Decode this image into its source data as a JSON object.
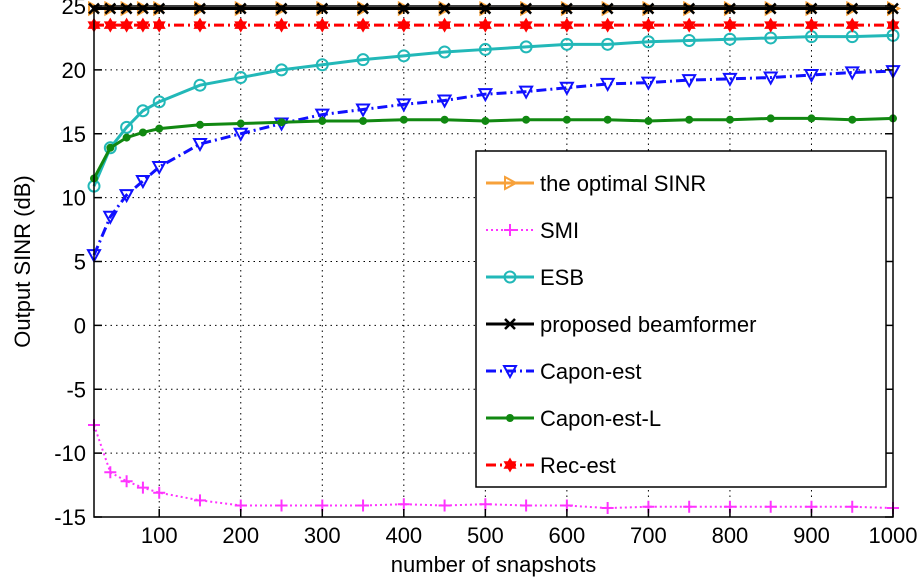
{
  "chart_data": {
    "type": "line",
    "xlabel": "number of snapshots",
    "ylabel": "Output SINR (dB)",
    "xlim": [
      20,
      1000
    ],
    "ylim": [
      -15,
      25
    ],
    "xticks": [
      100,
      200,
      300,
      400,
      500,
      600,
      700,
      800,
      900,
      1000
    ],
    "yticks": [
      -15,
      -10,
      -5,
      0,
      5,
      10,
      15,
      20,
      25
    ],
    "grid": true,
    "legend_position": "center-right",
    "series": [
      {
        "name": "the optimal SINR",
        "color": "#f7a13a",
        "line_style": "solid",
        "marker": "triangle-right",
        "x": [
          20,
          40,
          60,
          80,
          100,
          150,
          200,
          250,
          300,
          350,
          400,
          450,
          500,
          550,
          600,
          650,
          700,
          750,
          800,
          850,
          900,
          950,
          1000
        ],
        "y": [
          24.8,
          24.8,
          24.8,
          24.8,
          24.8,
          24.8,
          24.8,
          24.8,
          24.8,
          24.8,
          24.8,
          24.8,
          24.8,
          24.8,
          24.8,
          24.8,
          24.8,
          24.8,
          24.8,
          24.8,
          24.8,
          24.8,
          24.8
        ]
      },
      {
        "name": "SMI",
        "color": "#ff33ff",
        "line_style": "dotted",
        "marker": "plus",
        "x": [
          20,
          40,
          60,
          80,
          100,
          150,
          200,
          250,
          300,
          350,
          400,
          450,
          500,
          550,
          600,
          650,
          700,
          750,
          800,
          850,
          900,
          950,
          1000
        ],
        "y": [
          -7.8,
          -11.5,
          -12.2,
          -12.7,
          -13.1,
          -13.7,
          -14.1,
          -14.1,
          -14.1,
          -14.1,
          -14.0,
          -14.1,
          -14.0,
          -14.1,
          -14.1,
          -14.3,
          -14.2,
          -14.2,
          -14.2,
          -14.2,
          -14.2,
          -14.2,
          -14.3
        ]
      },
      {
        "name": "ESB",
        "color": "#22b8b8",
        "line_style": "solid",
        "marker": "circle",
        "x": [
          20,
          40,
          60,
          80,
          100,
          150,
          200,
          250,
          300,
          350,
          400,
          450,
          500,
          550,
          600,
          650,
          700,
          750,
          800,
          850,
          900,
          950,
          1000
        ],
        "y": [
          10.9,
          13.9,
          15.5,
          16.8,
          17.5,
          18.8,
          19.4,
          20.0,
          20.4,
          20.8,
          21.1,
          21.4,
          21.6,
          21.8,
          22.0,
          22.0,
          22.2,
          22.3,
          22.4,
          22.5,
          22.6,
          22.6,
          22.7
        ]
      },
      {
        "name": "proposed beamformer",
        "color": "#000000",
        "line_style": "solid",
        "marker": "x",
        "x": [
          20,
          40,
          60,
          80,
          100,
          150,
          200,
          250,
          300,
          350,
          400,
          450,
          500,
          550,
          600,
          650,
          700,
          750,
          800,
          850,
          900,
          950,
          1000
        ],
        "y": [
          24.8,
          24.8,
          24.8,
          24.8,
          24.8,
          24.8,
          24.8,
          24.8,
          24.8,
          24.8,
          24.8,
          24.8,
          24.8,
          24.8,
          24.8,
          24.8,
          24.8,
          24.8,
          24.8,
          24.8,
          24.8,
          24.8,
          24.8
        ]
      },
      {
        "name": "Capon-est",
        "color": "#1010ff",
        "line_style": "dashdot",
        "marker": "triangle-down",
        "x": [
          20,
          40,
          60,
          80,
          100,
          150,
          200,
          250,
          300,
          350,
          400,
          450,
          500,
          550,
          600,
          650,
          700,
          750,
          800,
          850,
          900,
          950,
          1000
        ],
        "y": [
          5.5,
          8.5,
          10.2,
          11.3,
          12.4,
          14.2,
          15.0,
          15.8,
          16.5,
          16.9,
          17.3,
          17.6,
          18.1,
          18.3,
          18.6,
          18.9,
          19.0,
          19.2,
          19.3,
          19.4,
          19.6,
          19.8,
          19.9
        ]
      },
      {
        "name": "Capon-est-L",
        "color": "#118811",
        "line_style": "solid",
        "marker": "dot",
        "x": [
          20,
          40,
          60,
          80,
          100,
          150,
          200,
          250,
          300,
          350,
          400,
          450,
          500,
          550,
          600,
          650,
          700,
          750,
          800,
          850,
          900,
          950,
          1000
        ],
        "y": [
          11.5,
          13.9,
          14.7,
          15.1,
          15.4,
          15.7,
          15.8,
          15.9,
          16.0,
          16.0,
          16.1,
          16.1,
          16.0,
          16.1,
          16.1,
          16.1,
          16.0,
          16.1,
          16.1,
          16.2,
          16.2,
          16.1,
          16.2
        ]
      },
      {
        "name": "Rec-est",
        "color": "#ff0000",
        "line_style": "dashdot",
        "marker": "hexagram",
        "x": [
          20,
          40,
          60,
          80,
          100,
          150,
          200,
          250,
          300,
          350,
          400,
          450,
          500,
          550,
          600,
          650,
          700,
          750,
          800,
          850,
          900,
          950,
          1000
        ],
        "y": [
          23.5,
          23.5,
          23.5,
          23.5,
          23.5,
          23.5,
          23.5,
          23.5,
          23.5,
          23.5,
          23.5,
          23.5,
          23.5,
          23.5,
          23.5,
          23.5,
          23.5,
          23.5,
          23.5,
          23.5,
          23.5,
          23.5,
          23.5
        ]
      }
    ]
  }
}
